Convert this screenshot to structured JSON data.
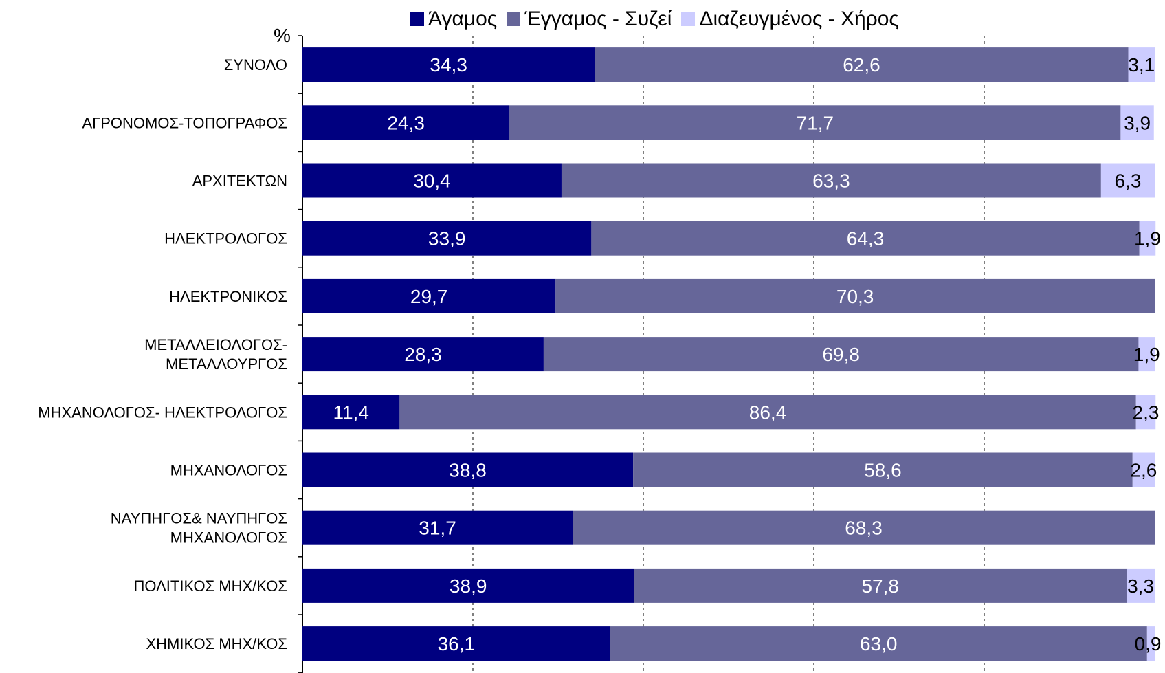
{
  "chart_data": {
    "type": "bar",
    "orientation": "horizontal",
    "stacked": "percent",
    "unit_label": "%",
    "categories": [
      "ΣΥΝΟΛΟ",
      "ΑΓΡΟΝΟΜΟΣ-ΤΟΠΟΓΡΑΦΟΣ",
      "ΑΡΧΙΤΕΚΤΩΝ",
      "ΗΛΕΚΤΡΟΛΟΓΟΣ",
      "ΗΛΕΚΤΡΟΝΙΚΟΣ",
      "ΜΕΤΑΛΛΕΙΟΛΟΓΟΣ-\nΜΕΤΑΛΛΟΥΡΓΟΣ",
      "ΜΗΧΑΝΟΛΟΓΟΣ- ΗΛΕΚΤΡΟΛΟΓΟΣ",
      "ΜΗΧΑΝΟΛΟΓΟΣ",
      "ΝΑΥΠΗΓΟΣ& ΝΑΥΠΗΓΟΣ\nΜΗΧΑΝΟΛΟΓΟΣ",
      "ΠΟΛΙΤΙΚΟΣ ΜΗΧ/ΚΟΣ",
      "ΧΗΜΙΚΟΣ ΜΗΧ/ΚΟΣ"
    ],
    "series": [
      {
        "name": "Άγαμος",
        "color": "#000080",
        "values": [
          34.3,
          24.3,
          30.4,
          33.9,
          29.7,
          28.3,
          11.4,
          38.8,
          31.7,
          38.9,
          36.1
        ],
        "labels": [
          "34,3",
          "24,3",
          "30,4",
          "33,9",
          "29,7",
          "28,3",
          "11,4",
          "38,8",
          "31,7",
          "38,9",
          "36,1"
        ]
      },
      {
        "name": "Έγγαμος - Συζεί",
        "color": "#666699",
        "values": [
          62.6,
          71.7,
          63.3,
          64.3,
          70.3,
          69.8,
          86.4,
          58.6,
          68.3,
          57.8,
          63.0
        ],
        "labels": [
          "62,6",
          "71,7",
          "63,3",
          "64,3",
          "70,3",
          "69,8",
          "86,4",
          "58,6",
          "68,3",
          "57,8",
          "63,0"
        ]
      },
      {
        "name": "Διαζευγμένος - Χήρος",
        "color": "#ccccff",
        "values": [
          3.1,
          3.9,
          6.3,
          1.9,
          0,
          1.9,
          2.3,
          2.6,
          0,
          3.3,
          0.9
        ],
        "labels": [
          "3,1",
          "3,9",
          "6,3",
          "1,9",
          "",
          "1,9",
          "2,3",
          "2,6",
          "",
          "3,3",
          "0,9"
        ]
      }
    ],
    "xlim": [
      0,
      100
    ],
    "grid": "vertical dashed",
    "legend_position": "top"
  }
}
